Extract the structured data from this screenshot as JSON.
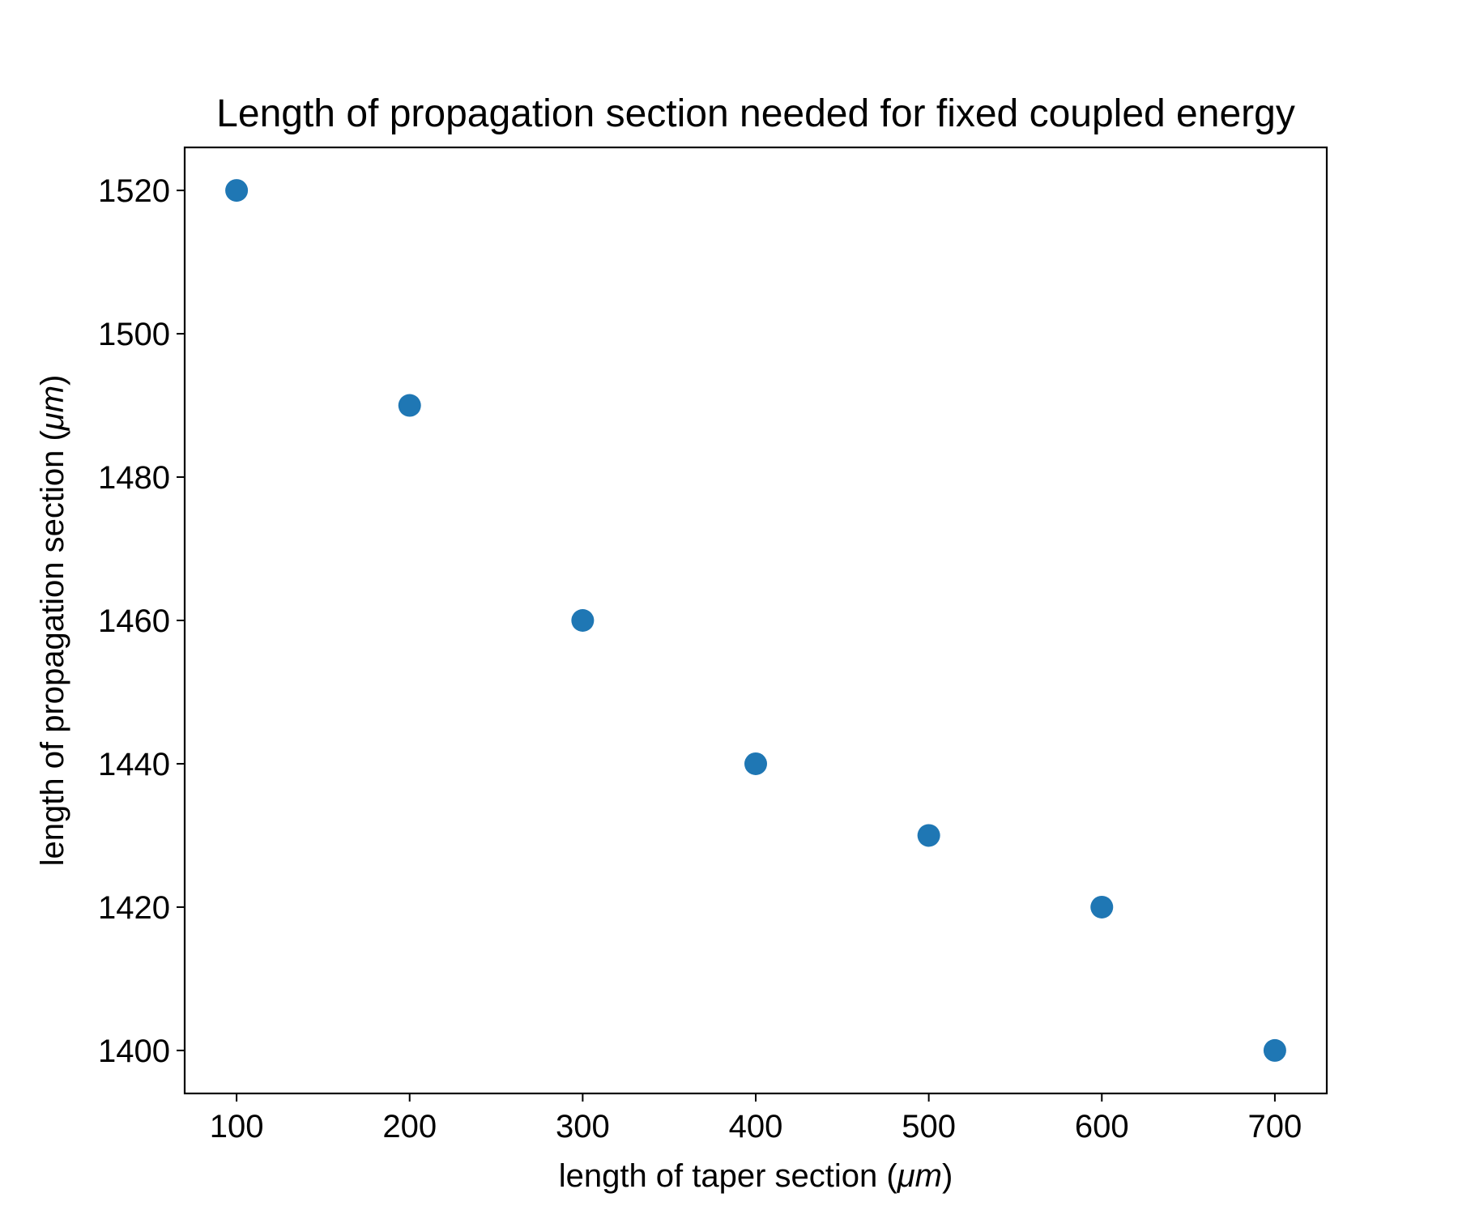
{
  "chart_data": {
    "type": "scatter",
    "title": "Length of propagation section needed for fixed coupled energy",
    "xlabel": {
      "prefix": "length of taper section (",
      "unit": "μm",
      "suffix": ")"
    },
    "ylabel": {
      "prefix": "length of propagation section (",
      "unit": "μm",
      "suffix": ")"
    },
    "xlim": [
      70,
      730
    ],
    "ylim": [
      1394,
      1526
    ],
    "xticks": [
      100,
      200,
      300,
      400,
      500,
      600,
      700
    ],
    "yticks": [
      1400,
      1420,
      1440,
      1460,
      1480,
      1500,
      1520
    ],
    "xtick_labels": [
      "100",
      "200",
      "300",
      "400",
      "500",
      "600",
      "700"
    ],
    "ytick_labels": [
      "1400",
      "1420",
      "1440",
      "1460",
      "1480",
      "1500",
      "1520"
    ],
    "grid": false,
    "marker_color": "#1f77b4",
    "points": [
      {
        "x": 100,
        "y": 1520
      },
      {
        "x": 200,
        "y": 1490
      },
      {
        "x": 300,
        "y": 1460
      },
      {
        "x": 400,
        "y": 1440
      },
      {
        "x": 500,
        "y": 1430
      },
      {
        "x": 600,
        "y": 1420
      },
      {
        "x": 700,
        "y": 1400
      }
    ]
  }
}
